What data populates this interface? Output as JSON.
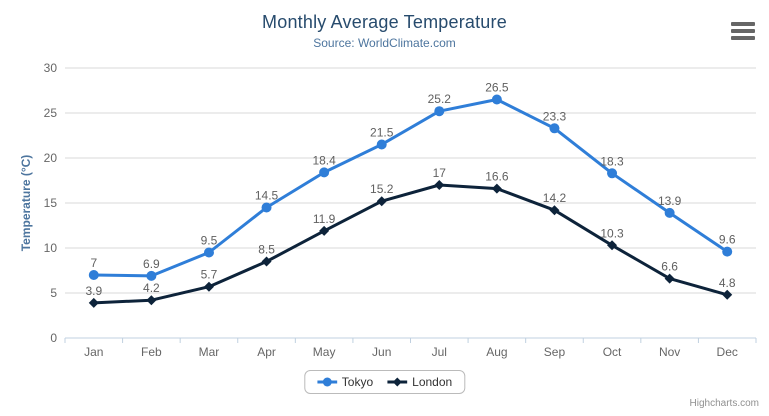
{
  "chart_data": {
    "type": "line",
    "title": "Monthly Average Temperature",
    "subtitle": "Source: WorldClimate.com",
    "categories": [
      "Jan",
      "Feb",
      "Mar",
      "Apr",
      "May",
      "Jun",
      "Jul",
      "Aug",
      "Sep",
      "Oct",
      "Nov",
      "Dec"
    ],
    "series": [
      {
        "name": "Tokyo",
        "color": "#2f7ed8",
        "marker": "circle",
        "values": [
          7,
          6.9,
          9.5,
          14.5,
          18.4,
          21.5,
          25.2,
          26.5,
          23.3,
          18.3,
          13.9,
          9.6
        ]
      },
      {
        "name": "London",
        "color": "#0d233a",
        "marker": "diamond",
        "values": [
          3.9,
          4.2,
          5.7,
          8.5,
          11.9,
          15.2,
          17,
          16.6,
          14.2,
          10.3,
          6.6,
          4.8
        ]
      }
    ],
    "xlabel": "",
    "ylabel": "Temperature (°C)",
    "ylim": [
      0,
      30
    ],
    "ytick_interval": 5,
    "grid": true,
    "data_labels": true,
    "legend_position": "bottom"
  },
  "legend": {
    "items": [
      "Tokyo",
      "London"
    ]
  },
  "credits": {
    "text": "Highcharts.com"
  },
  "menu": {
    "icon": "hamburger-menu-icon"
  },
  "palette": {
    "title": "#274b6d",
    "subtitle": "#4d759e",
    "axis_title": "#4d759e",
    "axis_label": "#666666",
    "data_label": "#606060",
    "grid": "#d8d8d8",
    "axis_line": "#c0d0e0",
    "legend_text": "#333333",
    "legend_border": "#bbbbbb",
    "credits": "#909090",
    "menu_icon": "#666666",
    "background": "#ffffff"
  }
}
